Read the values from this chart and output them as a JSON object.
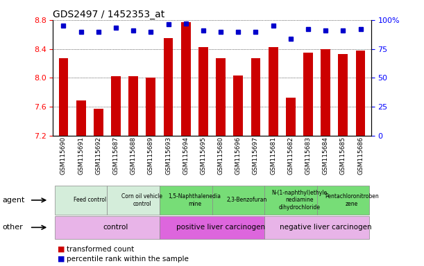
{
  "title": "GDS2497 / 1452353_at",
  "samples": [
    "GSM115690",
    "GSM115691",
    "GSM115692",
    "GSM115687",
    "GSM115688",
    "GSM115689",
    "GSM115693",
    "GSM115694",
    "GSM115695",
    "GSM115680",
    "GSM115696",
    "GSM115697",
    "GSM115681",
    "GSM115682",
    "GSM115683",
    "GSM115684",
    "GSM115685",
    "GSM115686"
  ],
  "bar_values": [
    8.27,
    7.69,
    7.57,
    8.02,
    8.02,
    8.0,
    8.55,
    8.77,
    8.42,
    8.27,
    8.03,
    8.27,
    8.42,
    7.73,
    8.35,
    8.4,
    8.33,
    8.38
  ],
  "percentile_values": [
    95,
    90,
    90,
    93,
    91,
    90,
    96,
    97,
    91,
    90,
    90,
    90,
    95,
    84,
    92,
    91,
    91,
    92
  ],
  "bar_color": "#cc0000",
  "dot_color": "#0000cc",
  "ymin": 7.2,
  "ymax": 8.8,
  "y2min": 0,
  "y2max": 100,
  "yticks": [
    7.2,
    7.6,
    8.0,
    8.4,
    8.8
  ],
  "y2ticks": [
    0,
    25,
    50,
    75,
    100
  ],
  "agent_groups": [
    {
      "label": "Feed control",
      "start": 0,
      "end": 3,
      "color": "#d4edda"
    },
    {
      "label": "Corn oil vehicle\ncontrol",
      "start": 3,
      "end": 6,
      "color": "#d4edda"
    },
    {
      "label": "1,5-Naphthalenedia\nmine",
      "start": 6,
      "end": 9,
      "color": "#77dd77"
    },
    {
      "label": "2,3-Benzofuran",
      "start": 9,
      "end": 12,
      "color": "#77dd77"
    },
    {
      "label": "N-(1-naphthyl)ethyle\nnediamine\ndihydrochloride",
      "start": 12,
      "end": 15,
      "color": "#77dd77"
    },
    {
      "label": "Pentachloronitroben\nzene",
      "start": 15,
      "end": 18,
      "color": "#77dd77"
    }
  ],
  "other_groups": [
    {
      "label": "control",
      "start": 0,
      "end": 6,
      "color": "#e8b4e8"
    },
    {
      "label": "positive liver carcinogen",
      "start": 6,
      "end": 12,
      "color": "#dd66dd"
    },
    {
      "label": "negative liver carcinogen",
      "start": 12,
      "end": 18,
      "color": "#e8b4e8"
    }
  ],
  "legend_red_label": "transformed count",
  "legend_blue_label": "percentile rank within the sample",
  "bar_color_hex": "#cc0000",
  "dot_color_hex": "#0000cc",
  "xlabel_fontsize": 6.5,
  "ylabel_fontsize": 8,
  "title_fontsize": 10,
  "agent_label": "agent",
  "other_label": "other"
}
